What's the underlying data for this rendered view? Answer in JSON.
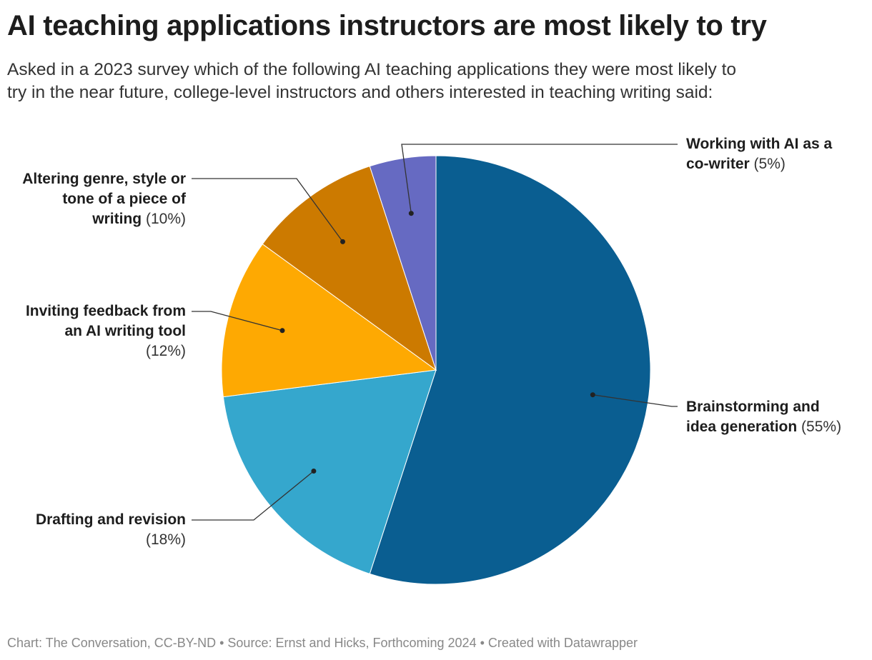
{
  "title": "AI teaching applications instructors are most likely to try",
  "subtitle": {
    "line1": "Asked in a 2023 survey which of the following AI teaching applications they were most likely to",
    "line2": "try in the near future, college-level instructors and others interested in teaching writing said:"
  },
  "chart_data": {
    "type": "pie",
    "title": "AI teaching applications instructors are most likely to try",
    "start": "12 o'clock, clockwise",
    "slices": [
      {
        "label": "Brainstorming and idea generation",
        "value": 55,
        "color": "#0a5e91",
        "name_lines": [
          "Brainstorming and",
          "idea generation"
        ],
        "pct_text": "(55%)"
      },
      {
        "label": "Drafting and revision",
        "value": 18,
        "color": "#35a7cd",
        "name_lines": [
          "Drafting and revision"
        ],
        "pct_text": "(18%)"
      },
      {
        "label": "Inviting feedback from an AI writing tool",
        "value": 12,
        "color": "#fea902",
        "name_lines": [
          "Inviting feedback from",
          "an AI writing tool"
        ],
        "pct_text": "(12%)"
      },
      {
        "label": "Altering genre, style or tone of a piece of writing",
        "value": 10,
        "color": "#cc7a00",
        "name_lines": [
          "Altering genre, style or",
          "tone of a piece of",
          "writing"
        ],
        "pct_text": "(10%)"
      },
      {
        "label": "Working with AI as a co-writer",
        "value": 5,
        "color": "#666ac2",
        "name_lines": [
          "Working with AI as a",
          "co-writer"
        ],
        "pct_text": "(5%)"
      }
    ]
  },
  "footer": "Chart: The Conversation, CC-BY-ND • Source: Ernst and Hicks, Forthcoming 2024 • Created with Datawrapper"
}
